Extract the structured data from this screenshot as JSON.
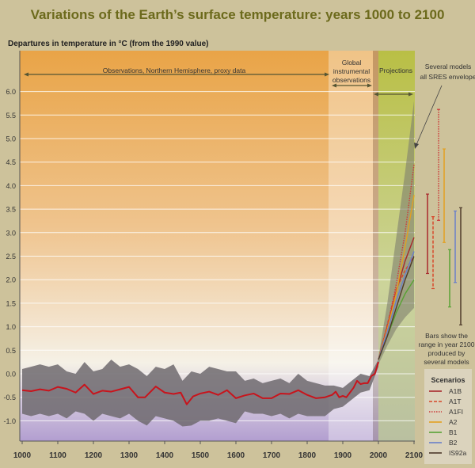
{
  "chart_data": {
    "type": "line",
    "title": "Variations of the Earth’s surface temperature: years 1000 to 2100",
    "ylabel": "Departures in temperature in °C (from the 1990 value)",
    "xlabel": "",
    "xlim": [
      1000,
      2100
    ],
    "ylim": [
      -1.45,
      6.6
    ],
    "grid": true,
    "x_ticks": [
      1000,
      1100,
      1200,
      1300,
      1400,
      1500,
      1600,
      1700,
      1800,
      1900,
      2000,
      2100
    ],
    "y_ticks": [
      "-1.0",
      "-0.5",
      "0.0",
      "0.5",
      "1.0",
      "1.5",
      "2.0",
      "2.5",
      "3.0",
      "3.5",
      "4.0",
      "4.5",
      "5.0",
      "5.5",
      "6.0"
    ],
    "periods": [
      {
        "label": "Observations, Northern Hemisphere, proxy data",
        "range": [
          1000,
          1860
        ]
      },
      {
        "label_lines": [
          "Global",
          "instrumental",
          "observations"
        ],
        "range": [
          1860,
          2000
        ]
      },
      {
        "label": "Projections",
        "range": [
          2000,
          2100
        ]
      }
    ],
    "proxy_band": {
      "x": [
        1000,
        1025,
        1050,
        1075,
        1100,
        1125,
        1150,
        1175,
        1200,
        1225,
        1250,
        1275,
        1300,
        1325,
        1350,
        1375,
        1400,
        1425,
        1450,
        1475,
        1500,
        1525,
        1550,
        1575,
        1600,
        1625,
        1650,
        1675,
        1700,
        1725,
        1750,
        1775,
        1800,
        1825,
        1850,
        1875,
        1900,
        1925,
        1950,
        1975,
        2000
      ],
      "upper": [
        0.1,
        0.15,
        0.2,
        0.15,
        0.2,
        0.05,
        0.0,
        0.25,
        0.05,
        0.1,
        0.3,
        0.15,
        0.2,
        0.1,
        -0.05,
        0.15,
        0.1,
        0.2,
        -0.15,
        0.05,
        0.0,
        0.15,
        0.1,
        0.05,
        0.05,
        -0.15,
        -0.1,
        -0.2,
        -0.15,
        -0.1,
        -0.2,
        0.0,
        -0.15,
        -0.2,
        -0.25,
        -0.25,
        -0.3,
        -0.15,
        0.0,
        -0.05,
        0.3
      ],
      "lower": [
        -0.85,
        -0.9,
        -0.85,
        -0.9,
        -0.85,
        -0.95,
        -0.8,
        -0.85,
        -1.0,
        -0.85,
        -0.9,
        -0.95,
        -0.85,
        -1.0,
        -1.1,
        -0.9,
        -0.95,
        -1.0,
        -1.12,
        -1.1,
        -1.0,
        -1.0,
        -0.95,
        -1.0,
        -1.05,
        -0.8,
        -0.85,
        -0.85,
        -0.9,
        -0.85,
        -0.95,
        -0.85,
        -0.9,
        -0.9,
        -0.9,
        -0.75,
        -0.7,
        -0.55,
        -0.4,
        -0.35,
        0.15
      ]
    },
    "observed_smoothed": {
      "x": [
        1000,
        1025,
        1050,
        1075,
        1100,
        1125,
        1150,
        1175,
        1200,
        1225,
        1250,
        1275,
        1300,
        1325,
        1345,
        1375,
        1400,
        1425,
        1445,
        1462,
        1480,
        1500,
        1525,
        1550,
        1575,
        1600,
        1625,
        1650,
        1675,
        1700,
        1725,
        1750,
        1775,
        1800,
        1825,
        1850,
        1870,
        1880,
        1890,
        1900,
        1910,
        1920,
        1930,
        1940,
        1950,
        1960,
        1970,
        1980,
        1990,
        2000
      ],
      "y": [
        -0.35,
        -0.37,
        -0.33,
        -0.36,
        -0.28,
        -0.32,
        -0.4,
        -0.23,
        -0.43,
        -0.36,
        -0.38,
        -0.33,
        -0.28,
        -0.5,
        -0.5,
        -0.27,
        -0.4,
        -0.43,
        -0.4,
        -0.65,
        -0.48,
        -0.42,
        -0.38,
        -0.45,
        -0.35,
        -0.52,
        -0.46,
        -0.42,
        -0.52,
        -0.52,
        -0.42,
        -0.43,
        -0.35,
        -0.45,
        -0.52,
        -0.5,
        -0.45,
        -0.38,
        -0.5,
        -0.47,
        -0.5,
        -0.4,
        -0.3,
        -0.15,
        -0.22,
        -0.2,
        -0.2,
        -0.05,
        0.0,
        0.25
      ]
    },
    "projection_years": [
      2000,
      2025,
      2050,
      2075,
      2100
    ],
    "envelope": {
      "label_lines": [
        "Several models",
        "all SRES envelope"
      ],
      "upper": [
        0.35,
        1.5,
        2.9,
        4.3,
        5.8
      ],
      "lower": [
        0.2,
        0.6,
        0.95,
        1.2,
        1.4
      ]
    },
    "series": [
      {
        "name": "A1B",
        "style": "solid",
        "color": "#a8282c",
        "values": [
          0.3,
          1.0,
          1.75,
          2.4,
          2.9
        ],
        "range_2100": [
          2.13,
          3.82
        ]
      },
      {
        "name": "A1T",
        "style": "dashed",
        "color": "#d8472a",
        "values": [
          0.3,
          1.05,
          1.8,
          2.2,
          2.5
        ],
        "range_2100": [
          1.81,
          3.34
        ]
      },
      {
        "name": "A1FI",
        "style": "dotted",
        "color": "#cc3a3a",
        "values": [
          0.3,
          1.0,
          1.9,
          3.0,
          4.45
        ],
        "range_2100": [
          3.26,
          5.62
        ]
      },
      {
        "name": "A2",
        "style": "solid",
        "color": "#e3a020",
        "values": [
          0.3,
          0.95,
          1.7,
          2.7,
          3.8
        ],
        "range_2100": [
          2.79,
          4.78
        ]
      },
      {
        "name": "B1",
        "style": "solid",
        "color": "#58a234",
        "values": [
          0.3,
          0.8,
          1.3,
          1.7,
          2.0
        ],
        "range_2100": [
          1.42,
          2.64
        ]
      },
      {
        "name": "B2",
        "style": "solid",
        "color": "#6a7fca",
        "values": [
          0.3,
          0.9,
          1.55,
          2.1,
          2.6
        ],
        "range_2100": [
          1.94,
          3.46
        ]
      },
      {
        "name": "IS92a",
        "style": "solid",
        "color": "#4e3a2a",
        "values": [
          0.3,
          0.8,
          1.4,
          2.0,
          2.5
        ],
        "range_2100": [
          1.04,
          3.53
        ]
      }
    ],
    "bars_note_lines": [
      "Bars show the",
      "range in year 2100",
      "produced by",
      "several models"
    ],
    "legend_title": "Scenarios",
    "legend_placement": "bottom-right"
  }
}
